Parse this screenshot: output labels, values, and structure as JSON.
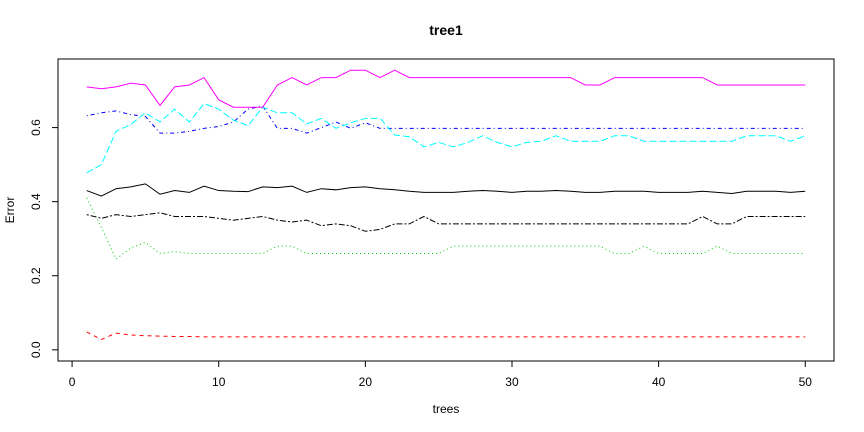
{
  "chart_data": {
    "type": "line",
    "title": "tree1",
    "xlabel": "trees",
    "ylabel": "Error",
    "xlim": [
      1,
      50
    ],
    "ylim": [
      0.0,
      0.7
    ],
    "xticks": [
      0,
      10,
      20,
      30,
      40,
      50
    ],
    "xtick_labels": [
      "0",
      "10",
      "20",
      "30",
      "40",
      "50"
    ],
    "yticks": [
      0.0,
      0.2,
      0.4,
      0.6
    ],
    "ytick_labels": [
      "0.0",
      "0.2",
      "0.4",
      "0.6"
    ],
    "grid": false,
    "x": [
      1,
      2,
      3,
      4,
      5,
      6,
      7,
      8,
      9,
      10,
      11,
      12,
      13,
      14,
      15,
      16,
      17,
      18,
      19,
      20,
      21,
      22,
      23,
      24,
      25,
      26,
      27,
      28,
      29,
      30,
      31,
      32,
      33,
      34,
      35,
      36,
      37,
      38,
      39,
      40,
      41,
      42,
      43,
      44,
      45,
      46,
      47,
      48,
      49,
      50
    ],
    "series": [
      {
        "color": "#000000",
        "dash": "solid",
        "values": [
          0.43,
          0.415,
          0.435,
          0.44,
          0.448,
          0.42,
          0.43,
          0.425,
          0.442,
          0.43,
          0.428,
          0.427,
          0.44,
          0.438,
          0.442,
          0.425,
          0.435,
          0.432,
          0.438,
          0.44,
          0.435,
          0.432,
          0.428,
          0.425,
          0.425,
          0.425,
          0.428,
          0.43,
          0.428,
          0.425,
          0.428,
          0.428,
          0.43,
          0.428,
          0.425,
          0.425,
          0.428,
          0.428,
          0.428,
          0.425,
          0.425,
          0.425,
          0.428,
          0.425,
          0.422,
          0.428,
          0.428,
          0.428,
          0.425,
          0.428
        ]
      },
      {
        "color": "#DF536B",
        "dash": "dashed",
        "values": [
          0.048,
          0.028,
          0.045,
          0.04,
          0.038,
          0.037,
          0.036,
          0.036,
          0.035,
          0.035,
          0.035,
          0.035,
          0.035,
          0.035,
          0.035,
          0.035,
          0.035,
          0.035,
          0.035,
          0.035,
          0.035,
          0.035,
          0.035,
          0.035,
          0.035,
          0.035,
          0.035,
          0.035,
          0.035,
          0.035,
          0.035,
          0.035,
          0.035,
          0.035,
          0.035,
          0.035,
          0.035,
          0.035,
          0.035,
          0.035,
          0.035,
          0.035,
          0.035,
          0.035,
          0.035,
          0.035,
          0.035,
          0.035,
          0.035,
          0.035
        ]
      },
      {
        "color": "#61D04F",
        "dash": "dotted",
        "values": [
          0.41,
          0.33,
          0.245,
          0.275,
          0.29,
          0.26,
          0.265,
          0.26,
          0.26,
          0.26,
          0.26,
          0.26,
          0.26,
          0.28,
          0.28,
          0.26,
          0.26,
          0.26,
          0.26,
          0.26,
          0.26,
          0.26,
          0.26,
          0.26,
          0.26,
          0.28,
          0.28,
          0.28,
          0.28,
          0.28,
          0.28,
          0.28,
          0.28,
          0.28,
          0.28,
          0.28,
          0.26,
          0.26,
          0.28,
          0.26,
          0.26,
          0.26,
          0.26,
          0.28,
          0.26,
          0.26,
          0.26,
          0.26,
          0.26,
          0.26
        ]
      },
      {
        "color": "#2297E6",
        "dash": "dotdash",
        "values": [
          0.632,
          0.64,
          0.645,
          0.635,
          0.63,
          0.585,
          0.585,
          0.59,
          0.598,
          0.603,
          0.615,
          0.65,
          0.658,
          0.598,
          0.598,
          0.585,
          0.6,
          0.615,
          0.598,
          0.613,
          0.598,
          0.598,
          0.598,
          0.598,
          0.598,
          0.598,
          0.598,
          0.598,
          0.598,
          0.598,
          0.598,
          0.598,
          0.598,
          0.598,
          0.598,
          0.598,
          0.598,
          0.598,
          0.598,
          0.598,
          0.598,
          0.598,
          0.598,
          0.598,
          0.598,
          0.598,
          0.598,
          0.598,
          0.598,
          0.598
        ]
      },
      {
        "color": "#28E2E5",
        "dash": "longdash",
        "values": [
          0.478,
          0.5,
          0.59,
          0.608,
          0.64,
          0.615,
          0.65,
          0.615,
          0.665,
          0.65,
          0.62,
          0.605,
          0.655,
          0.64,
          0.64,
          0.61,
          0.625,
          0.598,
          0.613,
          0.625,
          0.625,
          0.58,
          0.575,
          0.548,
          0.56,
          0.548,
          0.56,
          0.578,
          0.56,
          0.548,
          0.56,
          0.563,
          0.578,
          0.563,
          0.563,
          0.563,
          0.578,
          0.578,
          0.563,
          0.563,
          0.563,
          0.563,
          0.563,
          0.563,
          0.563,
          0.578,
          0.578,
          0.578,
          0.563,
          0.578
        ]
      },
      {
        "color": "#CD0BBC",
        "dash": "twodash",
        "values": [
          0.365,
          0.355,
          0.365,
          0.36,
          0.365,
          0.37,
          0.36,
          0.36,
          0.36,
          0.355,
          0.35,
          0.355,
          0.36,
          0.35,
          0.345,
          0.35,
          0.335,
          0.34,
          0.335,
          0.32,
          0.325,
          0.34,
          0.34,
          0.36,
          0.34,
          0.34,
          0.34,
          0.34,
          0.34,
          0.34,
          0.34,
          0.34,
          0.34,
          0.34,
          0.34,
          0.34,
          0.34,
          0.34,
          0.34,
          0.34,
          0.34,
          0.34,
          0.36,
          0.34,
          0.34,
          0.36,
          0.36,
          0.36,
          0.36,
          0.36
        ]
      },
      {
        "color": "#F5C710",
        "dash": "solid",
        "values": [
          0.71,
          0.705,
          0.71,
          0.72,
          0.715,
          0.66,
          0.71,
          0.715,
          0.735,
          0.675,
          0.655,
          0.655,
          0.655,
          0.715,
          0.735,
          0.715,
          0.735,
          0.735,
          0.755,
          0.755,
          0.735,
          0.755,
          0.735,
          0.735,
          0.735,
          0.735,
          0.735,
          0.735,
          0.735,
          0.735,
          0.735,
          0.735,
          0.735,
          0.735,
          0.715,
          0.715,
          0.735,
          0.735,
          0.735,
          0.735,
          0.735,
          0.735,
          0.735,
          0.715,
          0.715,
          0.715,
          0.715,
          0.715,
          0.715,
          0.715
        ]
      }
    ]
  }
}
